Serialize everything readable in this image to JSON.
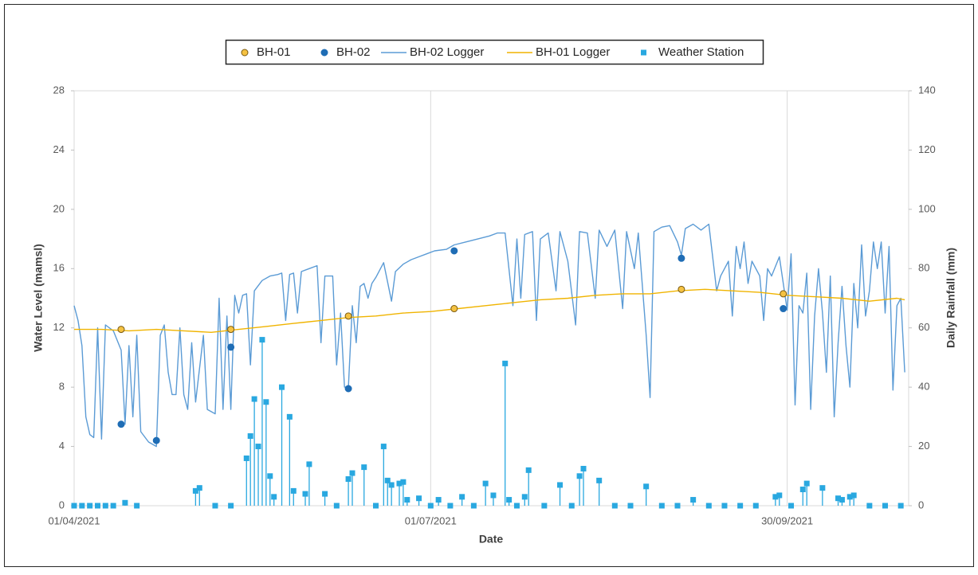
{
  "chart_data": {
    "type": "combo",
    "x_label": "Date",
    "y_label": "Water Level (mamsl)",
    "y2_label": "Daily Rainfall (mm)",
    "xlim": [
      "01/04/2021",
      "31/10/2021"
    ],
    "xticks": [
      "01/04/2021",
      "01/07/2021",
      "30/09/2021"
    ],
    "ylim": [
      0,
      28
    ],
    "yticks": [
      0,
      4,
      8,
      12,
      16,
      20,
      24,
      28
    ],
    "y2lim": [
      0,
      140
    ],
    "y2ticks": [
      0,
      20,
      40,
      60,
      80,
      100,
      120,
      140
    ],
    "grid": "x",
    "legend": "top",
    "series": [
      {
        "name": "BH-01",
        "type": "scatter",
        "color": "#f5c242",
        "edge": "#7a5a10",
        "x": [
          "13/04/2021",
          "11/05/2021",
          "10/06/2021",
          "07/07/2021",
          "03/09/2021",
          "29/09/2021"
        ],
        "values": [
          11.9,
          11.9,
          12.8,
          13.3,
          14.6,
          14.3
        ]
      },
      {
        "name": "BH-02",
        "type": "scatter",
        "color": "#1f6db5",
        "edge": "#1f6db5",
        "x": [
          "13/04/2021",
          "22/04/2021",
          "11/05/2021",
          "10/06/2021",
          "07/07/2021",
          "03/09/2021",
          "29/09/2021"
        ],
        "values": [
          5.5,
          4.4,
          10.7,
          7.9,
          17.2,
          16.7,
          13.3
        ]
      },
      {
        "name": "BH-02 Logger",
        "type": "line",
        "color": "#5b9bd5",
        "x": [
          "01/04/2021",
          "02/04/2021",
          "03/04/2021",
          "04/04/2021",
          "05/04/2021",
          "06/04/2021",
          "07/04/2021",
          "08/04/2021",
          "09/04/2021",
          "11/04/2021",
          "13/04/2021",
          "14/04/2021",
          "15/04/2021",
          "16/04/2021",
          "17/04/2021",
          "18/04/2021",
          "20/04/2021",
          "22/04/2021",
          "23/04/2021",
          "24/04/2021",
          "25/04/2021",
          "26/04/2021",
          "27/04/2021",
          "28/04/2021",
          "29/04/2021",
          "30/04/2021",
          "01/05/2021",
          "02/05/2021",
          "04/05/2021",
          "05/05/2021",
          "07/05/2021",
          "08/05/2021",
          "09/05/2021",
          "10/05/2021",
          "11/05/2021",
          "12/05/2021",
          "13/05/2021",
          "14/05/2021",
          "15/05/2021",
          "16/05/2021",
          "17/05/2021",
          "19/05/2021",
          "21/05/2021",
          "23/05/2021",
          "24/05/2021",
          "25/05/2021",
          "26/05/2021",
          "27/05/2021",
          "28/05/2021",
          "29/05/2021",
          "31/05/2021",
          "02/06/2021",
          "03/06/2021",
          "04/06/2021",
          "06/06/2021",
          "07/06/2021",
          "08/06/2021",
          "09/06/2021",
          "10/06/2021",
          "11/06/2021",
          "12/06/2021",
          "13/06/2021",
          "14/06/2021",
          "15/06/2021",
          "16/06/2021",
          "17/06/2021",
          "19/06/2021",
          "21/06/2021",
          "22/06/2021",
          "24/06/2021",
          "26/06/2021",
          "28/06/2021",
          "30/06/2021",
          "02/07/2021",
          "05/07/2021",
          "07/07/2021",
          "10/07/2021",
          "13/07/2021",
          "16/07/2021",
          "18/07/2021",
          "20/07/2021",
          "22/07/2021",
          "23/07/2021",
          "24/07/2021",
          "25/07/2021",
          "27/07/2021",
          "28/07/2021",
          "29/07/2021",
          "31/07/2021",
          "02/08/2021",
          "03/08/2021",
          "05/08/2021",
          "07/08/2021",
          "08/08/2021",
          "10/08/2021",
          "12/08/2021",
          "13/08/2021",
          "15/08/2021",
          "17/08/2021",
          "19/08/2021",
          "20/08/2021",
          "22/08/2021",
          "23/08/2021",
          "25/08/2021",
          "26/08/2021",
          "27/08/2021",
          "29/08/2021",
          "31/08/2021",
          "02/09/2021",
          "03/09/2021",
          "04/09/2021",
          "06/09/2021",
          "08/09/2021",
          "10/09/2021",
          "12/09/2021",
          "13/09/2021",
          "14/09/2021",
          "15/09/2021",
          "16/09/2021",
          "17/09/2021",
          "18/09/2021",
          "19/09/2021",
          "20/09/2021",
          "21/09/2021",
          "23/09/2021",
          "24/09/2021",
          "25/09/2021",
          "26/09/2021",
          "28/09/2021",
          "29/09/2021",
          "30/09/2021",
          "01/10/2021",
          "02/10/2021",
          "03/10/2021",
          "04/10/2021",
          "05/10/2021",
          "06/10/2021",
          "07/10/2021",
          "08/10/2021",
          "09/10/2021",
          "10/10/2021",
          "11/10/2021",
          "12/10/2021",
          "13/10/2021",
          "14/10/2021",
          "15/10/2021",
          "16/10/2021",
          "17/10/2021",
          "18/10/2021",
          "19/10/2021",
          "20/10/2021",
          "21/10/2021",
          "22/10/2021",
          "23/10/2021",
          "24/10/2021",
          "25/10/2021",
          "26/10/2021",
          "27/10/2021",
          "28/10/2021",
          "29/10/2021",
          "30/10/2021"
        ],
        "values": [
          13.5,
          12.5,
          10.8,
          6,
          4.8,
          4.6,
          12,
          4.5,
          12.2,
          11.8,
          10.5,
          5.5,
          10.8,
          6,
          11.5,
          5,
          4.3,
          4,
          11.5,
          12.2,
          9,
          7.5,
          7.5,
          12,
          7.5,
          6.5,
          11,
          7,
          11.5,
          6.5,
          6.2,
          14,
          6.5,
          12.8,
          6.5,
          14.2,
          13,
          14.2,
          14.3,
          9.5,
          14.5,
          15.2,
          15.5,
          15.6,
          15.7,
          12.5,
          15.6,
          15.7,
          13,
          15.8,
          16,
          16.2,
          11,
          15.5,
          15.5,
          9.5,
          13,
          8,
          8,
          13.5,
          11,
          14.8,
          15,
          14,
          15,
          15.4,
          16.4,
          13.8,
          15.8,
          16.3,
          16.6,
          16.8,
          17,
          17.2,
          17.3,
          17.6,
          17.8,
          18,
          18.2,
          18.4,
          18.4,
          13.5,
          18,
          14,
          18.3,
          18.5,
          12.5,
          18,
          18.4,
          14.5,
          18.5,
          16.5,
          12.2,
          18.5,
          18.4,
          14,
          18.6,
          17.5,
          18.6,
          13.3,
          18.5,
          16,
          18.4,
          11.5,
          7.3,
          18.5,
          18.8,
          18.9,
          17.8,
          16.9,
          18.7,
          19,
          18.6,
          19,
          14.5,
          15.5,
          16,
          16.5,
          12.8,
          17.5,
          16,
          17.8,
          15,
          16.5,
          15.5,
          12.5,
          16,
          15.5,
          16.8,
          15,
          13.2,
          17,
          6.8,
          13.5,
          13,
          15.7,
          6.5,
          12.8,
          16,
          13,
          9,
          15.5,
          6,
          11,
          14.8,
          10.8,
          8,
          15,
          12,
          17.6,
          12.8,
          14.5,
          17.8,
          16,
          17.8,
          13,
          17.5,
          7.8,
          13.5,
          14,
          9
        ]
      },
      {
        "name": "BH-01 Logger",
        "type": "line",
        "color": "#f0b400",
        "x": [
          "01/04/2021",
          "08/04/2021",
          "15/04/2021",
          "22/04/2021",
          "29/04/2021",
          "06/05/2021",
          "13/05/2021",
          "20/05/2021",
          "27/05/2021",
          "03/06/2021",
          "10/06/2021",
          "17/06/2021",
          "24/06/2021",
          "01/07/2021",
          "08/07/2021",
          "15/07/2021",
          "22/07/2021",
          "29/07/2021",
          "05/08/2021",
          "12/08/2021",
          "19/08/2021",
          "26/08/2021",
          "02/09/2021",
          "09/09/2021",
          "16/09/2021",
          "23/09/2021",
          "30/09/2021",
          "07/10/2021",
          "14/10/2021",
          "21/10/2021",
          "28/10/2021",
          "30/10/2021"
        ],
        "values": [
          11.9,
          11.9,
          11.8,
          11.9,
          11.8,
          11.7,
          11.9,
          12.1,
          12.3,
          12.5,
          12.7,
          12.8,
          13,
          13.1,
          13.3,
          13.5,
          13.7,
          13.9,
          14,
          14.2,
          14.3,
          14.3,
          14.5,
          14.6,
          14.5,
          14.4,
          14.2,
          14.1,
          14,
          13.8,
          14,
          13.9
        ]
      },
      {
        "name": "Weather Station",
        "type": "stem",
        "axis": "y2",
        "color": "#29a8e0",
        "x": [
          "01/04/2021",
          "03/04/2021",
          "05/04/2021",
          "07/04/2021",
          "09/04/2021",
          "11/04/2021",
          "14/04/2021",
          "17/04/2021",
          "02/05/2021",
          "03/05/2021",
          "07/05/2021",
          "11/05/2021",
          "15/05/2021",
          "16/05/2021",
          "17/05/2021",
          "18/05/2021",
          "19/05/2021",
          "20/05/2021",
          "21/05/2021",
          "22/05/2021",
          "24/05/2021",
          "26/05/2021",
          "27/05/2021",
          "30/05/2021",
          "31/05/2021",
          "04/06/2021",
          "07/06/2021",
          "10/06/2021",
          "11/06/2021",
          "14/06/2021",
          "17/06/2021",
          "19/06/2021",
          "20/06/2021",
          "21/06/2021",
          "23/06/2021",
          "24/06/2021",
          "25/06/2021",
          "28/06/2021",
          "01/07/2021",
          "03/07/2021",
          "06/07/2021",
          "09/07/2021",
          "12/07/2021",
          "15/07/2021",
          "17/07/2021",
          "20/07/2021",
          "21/07/2021",
          "23/07/2021",
          "25/07/2021",
          "26/07/2021",
          "30/07/2021",
          "03/08/2021",
          "06/08/2021",
          "08/08/2021",
          "09/08/2021",
          "13/08/2021",
          "17/08/2021",
          "21/08/2021",
          "25/08/2021",
          "29/08/2021",
          "02/09/2021",
          "06/09/2021",
          "10/09/2021",
          "14/09/2021",
          "18/09/2021",
          "22/09/2021",
          "27/09/2021",
          "28/09/2021",
          "01/10/2021",
          "04/10/2021",
          "05/10/2021",
          "09/10/2021",
          "13/10/2021",
          "14/10/2021",
          "16/10/2021",
          "17/10/2021",
          "21/10/2021",
          "25/10/2021",
          "29/10/2021"
        ],
        "values": [
          0,
          0,
          0,
          0,
          0,
          0,
          1,
          0,
          5,
          6,
          0,
          0,
          16,
          23.5,
          36,
          20,
          56,
          35,
          10,
          3,
          40,
          30,
          5,
          4,
          14,
          4,
          0,
          9,
          11,
          13,
          0,
          20,
          8.5,
          7,
          7.5,
          8,
          2,
          2.5,
          0,
          2,
          0,
          3,
          0,
          7.5,
          3.5,
          48,
          2,
          0,
          3,
          12,
          0,
          7,
          0,
          10,
          12.5,
          8.5,
          0,
          0,
          6.5,
          0,
          0,
          2,
          0,
          0,
          0,
          0,
          3,
          3.5,
          0,
          5.5,
          7.5,
          6,
          2.5,
          2,
          3,
          3.5,
          0,
          0,
          0
        ]
      }
    ]
  }
}
